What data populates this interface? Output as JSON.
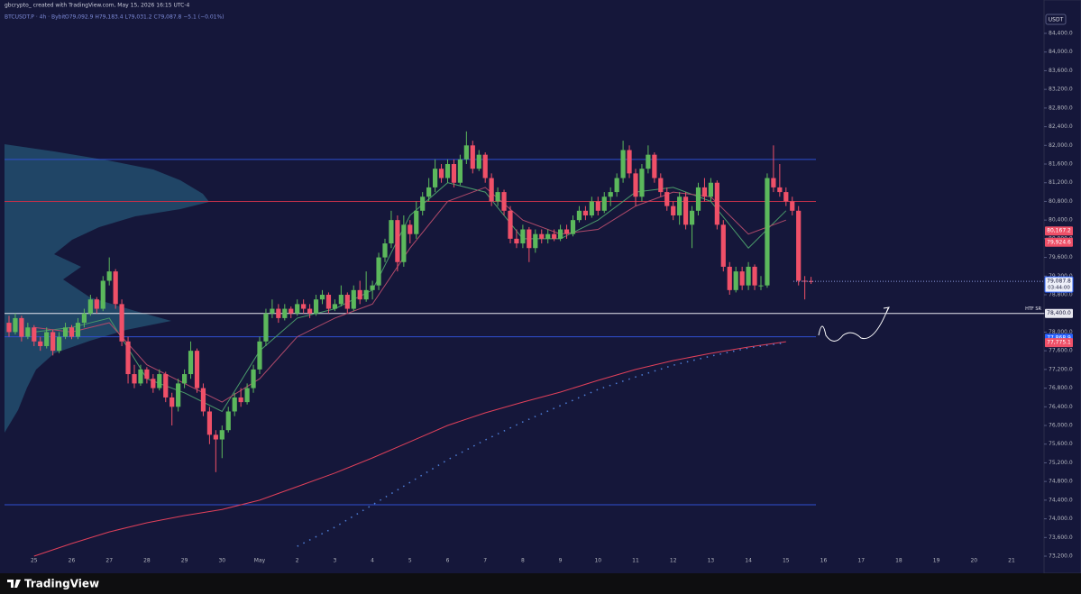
{
  "chart_data": {
    "type": "candlestick",
    "watermark": "gbcrypto_ created with TradingView.com, May 15, 2026 16:15 UTC-4",
    "title": "BTCUSDT.P · 4h · Bybit",
    "ohlc_text": "O79,092.9 H79,183.4 L79,031.2 C79,087.8 −5.1 (−0.01%)",
    "currency": "USDT",
    "brand": "TradingView",
    "up_color": "#5cb85c",
    "down_color": "#ef5068",
    "grid": false,
    "ylim": [
      72988,
      84825
    ],
    "yticks": [
      {
        "value": 73200,
        "label": "73,200.0"
      },
      {
        "value": 73600,
        "label": "73,600.0"
      },
      {
        "value": 74000,
        "label": "74,000.0"
      },
      {
        "value": 74400,
        "label": "74,400.0"
      },
      {
        "value": 74800,
        "label": "74,800.0"
      },
      {
        "value": 75200,
        "label": "75,200.0"
      },
      {
        "value": 75600,
        "label": "75,600.0"
      },
      {
        "value": 76000,
        "label": "76,000.0"
      },
      {
        "value": 76400,
        "label": "76,400.0"
      },
      {
        "value": 76800,
        "label": "76,800.0"
      },
      {
        "value": 77200,
        "label": "77,200.0"
      },
      {
        "value": 77600,
        "label": "77,600.0"
      },
      {
        "value": 78000,
        "label": "78,000.0"
      },
      {
        "value": 78400,
        "label": "78,400.0"
      },
      {
        "value": 78800,
        "label": "78,800.0"
      },
      {
        "value": 79200,
        "label": "79,200.0"
      },
      {
        "value": 79600,
        "label": "79,600.0"
      },
      {
        "value": 80000,
        "label": "80,000.0"
      },
      {
        "value": 80400,
        "label": "80,400.0"
      },
      {
        "value": 80800,
        "label": "80,800.0"
      },
      {
        "value": 81200,
        "label": "81,200.0"
      },
      {
        "value": 81600,
        "label": "81,600.0"
      },
      {
        "value": 82000,
        "label": "82,000.0"
      },
      {
        "value": 82400,
        "label": "82,400.0"
      },
      {
        "value": 82800,
        "label": "82,800.0"
      },
      {
        "value": 83200,
        "label": "83,200.0"
      },
      {
        "value": 83600,
        "label": "83,600.0"
      },
      {
        "value": 84000,
        "label": "84,000.0"
      },
      {
        "value": 84400,
        "label": "84,400.0"
      }
    ],
    "x_labels": [
      "25",
      "26",
      "27",
      "28",
      "29",
      "30",
      "May",
      "2",
      "3",
      "4",
      "5",
      "6",
      "7",
      "8",
      "9",
      "10",
      "11",
      "12",
      "13",
      "14",
      "15",
      "16",
      "17",
      "18",
      "19",
      "20",
      "21"
    ],
    "ohlc": [
      [
        78200,
        78350,
        77900,
        78000
      ],
      [
        78000,
        78400,
        77950,
        78300
      ],
      [
        78300,
        78350,
        77800,
        77900
      ],
      [
        77900,
        78200,
        77850,
        78100
      ],
      [
        78100,
        78150,
        77700,
        77800
      ],
      [
        77800,
        77900,
        77600,
        77700
      ],
      [
        77700,
        78100,
        77650,
        78000
      ],
      [
        78000,
        78050,
        77500,
        77600
      ],
      [
        77600,
        78000,
        77550,
        77900
      ],
      [
        77900,
        78200,
        77850,
        78100
      ],
      [
        78100,
        78150,
        77850,
        77900
      ],
      [
        77900,
        78300,
        77850,
        78200
      ],
      [
        78200,
        78500,
        78100,
        78400
      ],
      [
        78400,
        78800,
        78350,
        78700
      ],
      [
        78700,
        78750,
        78400,
        78500
      ],
      [
        78500,
        79200,
        78450,
        79100
      ],
      [
        79100,
        79600,
        79000,
        79300
      ],
      [
        79300,
        79350,
        78500,
        78600
      ],
      [
        78600,
        78700,
        77700,
        77800
      ],
      [
        77800,
        77900,
        76900,
        77100
      ],
      [
        77100,
        77300,
        76800,
        76900
      ],
      [
        76900,
        77300,
        76850,
        77200
      ],
      [
        77200,
        77250,
        76900,
        77000
      ],
      [
        77000,
        77100,
        76700,
        76800
      ],
      [
        76800,
        77200,
        76750,
        77100
      ],
      [
        77100,
        77150,
        76500,
        76600
      ],
      [
        76600,
        76700,
        76000,
        76400
      ],
      [
        76400,
        77000,
        76300,
        76900
      ],
      [
        76900,
        77200,
        76800,
        77100
      ],
      [
        77100,
        77800,
        77000,
        77600
      ],
      [
        77600,
        77650,
        76700,
        76800
      ],
      [
        76800,
        76900,
        76200,
        76300
      ],
      [
        76300,
        76400,
        75600,
        75800
      ],
      [
        75800,
        75900,
        75000,
        75700
      ],
      [
        75700,
        76000,
        75300,
        75900
      ],
      [
        75900,
        76400,
        75850,
        76300
      ],
      [
        76300,
        76700,
        76200,
        76600
      ],
      [
        76600,
        76800,
        76400,
        76500
      ],
      [
        76500,
        76900,
        76450,
        76800
      ],
      [
        76800,
        77300,
        76700,
        77200
      ],
      [
        77200,
        77900,
        77100,
        77800
      ],
      [
        77800,
        78500,
        77700,
        78400
      ],
      [
        78400,
        78700,
        78300,
        78500
      ],
      [
        78500,
        78600,
        78200,
        78300
      ],
      [
        78300,
        78600,
        78250,
        78500
      ],
      [
        78500,
        78550,
        78300,
        78400
      ],
      [
        78400,
        78700,
        78350,
        78600
      ],
      [
        78600,
        78700,
        78400,
        78500
      ],
      [
        78500,
        78600,
        78300,
        78400
      ],
      [
        78400,
        78800,
        78350,
        78700
      ],
      [
        78700,
        78900,
        78600,
        78800
      ],
      [
        78800,
        78850,
        78400,
        78500
      ],
      [
        78500,
        78700,
        78450,
        78600
      ],
      [
        78600,
        79000,
        78550,
        78800
      ],
      [
        78800,
        78850,
        78400,
        78500
      ],
      [
        78500,
        79000,
        78450,
        78900
      ],
      [
        78900,
        79100,
        78600,
        78700
      ],
      [
        78700,
        79300,
        78650,
        78900
      ],
      [
        78900,
        79100,
        78700,
        79000
      ],
      [
        79000,
        79700,
        78900,
        79600
      ],
      [
        79600,
        80000,
        79500,
        79900
      ],
      [
        79900,
        80600,
        79800,
        80400
      ],
      [
        80400,
        80500,
        79300,
        79500
      ],
      [
        79500,
        80500,
        79400,
        80300
      ],
      [
        80300,
        80400,
        79900,
        80100
      ],
      [
        80100,
        80800,
        80000,
        80600
      ],
      [
        80600,
        81000,
        80500,
        80900
      ],
      [
        80900,
        81300,
        80800,
        81100
      ],
      [
        81100,
        81700,
        81000,
        81500
      ],
      [
        81500,
        81600,
        81200,
        81300
      ],
      [
        81300,
        81700,
        81200,
        81600
      ],
      [
        81600,
        81700,
        81100,
        81200
      ],
      [
        81200,
        81800,
        81150,
        81700
      ],
      [
        81700,
        82300,
        81600,
        82000
      ],
      [
        82000,
        82100,
        81400,
        81500
      ],
      [
        81500,
        81900,
        81450,
        81800
      ],
      [
        81800,
        81850,
        81200,
        81300
      ],
      [
        81300,
        81400,
        80700,
        80800
      ],
      [
        80800,
        81100,
        80700,
        81000
      ],
      [
        81000,
        81050,
        80500,
        80600
      ],
      [
        80600,
        80700,
        79900,
        80000
      ],
      [
        80000,
        80200,
        79800,
        79900
      ],
      [
        79900,
        80300,
        79800,
        80200
      ],
      [
        80200,
        80250,
        79500,
        79800
      ],
      [
        79800,
        80200,
        79700,
        80100
      ],
      [
        80100,
        80200,
        79900,
        80000
      ],
      [
        80000,
        80200,
        79900,
        80100
      ],
      [
        80100,
        80200,
        79950,
        80000
      ],
      [
        80000,
        80300,
        79950,
        80200
      ],
      [
        80200,
        80300,
        80000,
        80100
      ],
      [
        80100,
        80500,
        80050,
        80400
      ],
      [
        80400,
        80700,
        80350,
        80600
      ],
      [
        80600,
        80700,
        80400,
        80500
      ],
      [
        80500,
        80900,
        80450,
        80800
      ],
      [
        80800,
        80900,
        80500,
        80600
      ],
      [
        80600,
        81000,
        80550,
        80900
      ],
      [
        80900,
        81100,
        80700,
        81000
      ],
      [
        81000,
        81400,
        80900,
        81300
      ],
      [
        81300,
        82100,
        81200,
        81900
      ],
      [
        81900,
        82000,
        81300,
        81400
      ],
      [
        81400,
        81500,
        80700,
        80900
      ],
      [
        80900,
        81600,
        80800,
        81500
      ],
      [
        81500,
        82000,
        81400,
        81800
      ],
      [
        81800,
        81850,
        81200,
        81300
      ],
      [
        81300,
        81400,
        80900,
        81000
      ],
      [
        81000,
        81100,
        80600,
        80700
      ],
      [
        80700,
        80800,
        80400,
        80500
      ],
      [
        80500,
        81000,
        80300,
        80900
      ],
      [
        80900,
        81000,
        80200,
        80300
      ],
      [
        80300,
        80700,
        79800,
        80600
      ],
      [
        80600,
        81200,
        80500,
        81100
      ],
      [
        81100,
        81300,
        80800,
        80900
      ],
      [
        80900,
        81300,
        80800,
        81200
      ],
      [
        81200,
        81250,
        80200,
        80300
      ],
      [
        80300,
        80400,
        79300,
        79400
      ],
      [
        79400,
        79500,
        78800,
        78900
      ],
      [
        78900,
        79400,
        78850,
        79300
      ],
      [
        79300,
        79400,
        78900,
        79000
      ],
      [
        79000,
        79500,
        78900,
        79400
      ],
      [
        79400,
        79450,
        78900,
        79000
      ],
      [
        79000,
        79200,
        78900,
        79000
      ],
      [
        79000,
        81400,
        78950,
        81300
      ],
      [
        81300,
        82000,
        81000,
        81100
      ],
      [
        81100,
        81600,
        80900,
        81000
      ],
      [
        81000,
        81100,
        80700,
        80800
      ],
      [
        80800,
        80900,
        80500,
        80600
      ],
      [
        80600,
        80700,
        79000,
        79100
      ],
      [
        79100,
        79200,
        78700,
        79092.9
      ],
      [
        79092.9,
        79183.4,
        79031.2,
        79087.8
      ]
    ],
    "overlays": [
      {
        "color": "#e0405a",
        "dashed": false,
        "values": [
          73200,
          73470,
          73720,
          73915,
          74070,
          74200,
          74400,
          74690,
          74980,
          75305,
          75650,
          76000,
          76270,
          76500,
          76715,
          76965,
          77200,
          77390,
          77545,
          77680,
          77795,
          null,
          null,
          null,
          null,
          null,
          null
        ]
      },
      {
        "color": "#4f7fd8",
        "dashed": true,
        "values": [
          null,
          null,
          null,
          null,
          null,
          null,
          null,
          73410,
          73820,
          74300,
          74780,
          75265,
          75690,
          76075,
          76425,
          76770,
          77040,
          77290,
          77485,
          77660,
          77775,
          null,
          null,
          null,
          null,
          null,
          null
        ]
      },
      {
        "color": "#4a9a6a",
        "dashed": false,
        "values": [
          78000,
          78100,
          78300,
          77000,
          76700,
          76300,
          77600,
          78300,
          78500,
          78900,
          80500,
          81200,
          81000,
          80000,
          80000,
          80400,
          81000,
          81100,
          80800,
          79800,
          80600,
          null,
          null,
          null,
          null,
          null,
          null
        ]
      },
      {
        "color": "#b04a6a",
        "dashed": false,
        "values": [
          78100,
          78000,
          78200,
          77300,
          76900,
          76500,
          77000,
          77900,
          78300,
          78600,
          79800,
          80800,
          81100,
          80400,
          80100,
          80200,
          80700,
          81000,
          80900,
          80100,
          80400,
          null,
          null,
          null,
          null,
          null,
          null
        ]
      }
    ],
    "levels": [
      {
        "value": 81700,
        "color": "#2f4fd0"
      },
      {
        "value": 80800,
        "color": "#c0304a"
      },
      {
        "value": 78400,
        "color": "#e8e8f0"
      },
      {
        "value": 77900,
        "color": "#2f4fd0"
      },
      {
        "value": 74300,
        "color": "#2f4fd0"
      }
    ],
    "annotation": {
      "text": "HTF SR",
      "value": 78400
    },
    "price_labels": [
      {
        "value": 80167.2,
        "label": "80,167.2",
        "color": "#ef5068"
      },
      {
        "value": 79924.6,
        "label": "79,924.6",
        "color": "#ef5068"
      },
      {
        "value": 78400,
        "label": "78,400.0",
        "color": "#e8e8f0"
      },
      {
        "value": 77868.9,
        "label": "77,868.9",
        "color": "#2962ff"
      },
      {
        "value": 77775.1,
        "label": "77,775.1",
        "color": "#ef5068"
      }
    ],
    "last_price": {
      "value": 79087.8,
      "label": "79,087.8",
      "countdown": "03:44:00"
    }
  }
}
